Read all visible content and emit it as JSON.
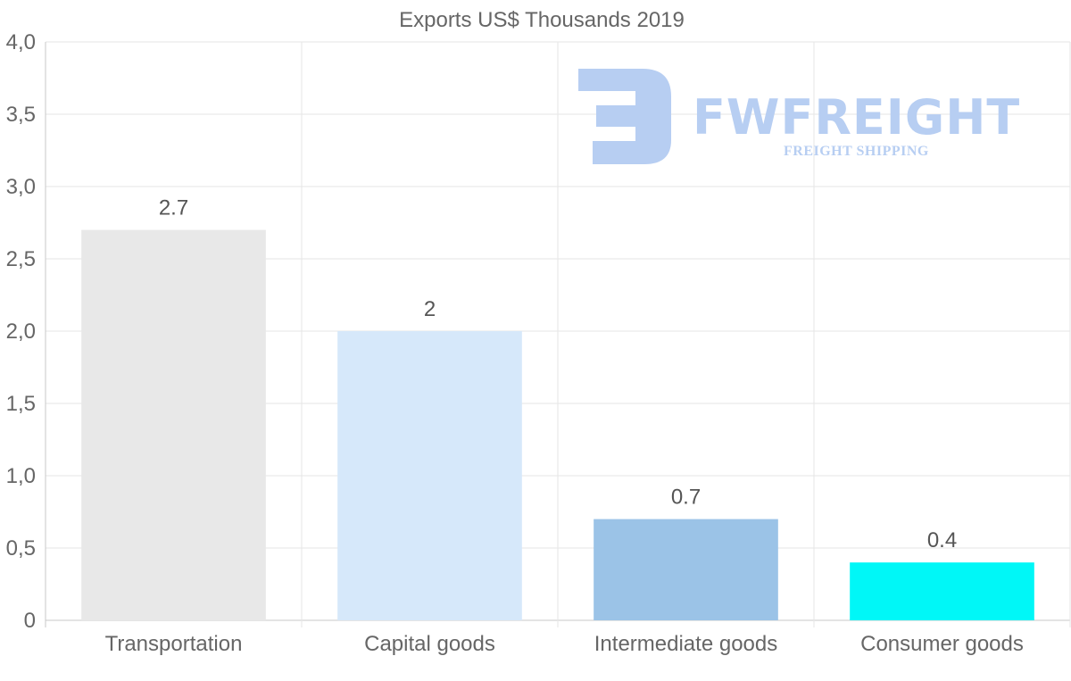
{
  "chart_data": {
    "type": "bar",
    "title": "Exports US$ Thousands 2019",
    "xlabel": "",
    "ylabel": "",
    "ylim": [
      0,
      4
    ],
    "yticks": [
      0,
      0.5,
      1,
      1.5,
      2,
      2.5,
      3,
      3.5,
      4
    ],
    "ytick_labels": [
      "0",
      "0,5",
      "1,0",
      "1,5",
      "2,0",
      "2,5",
      "3,0",
      "3,5",
      "4,0"
    ],
    "grid": true,
    "categories": [
      "Transportation",
      "Capital goods",
      "Intermediate goods",
      "Consumer goods"
    ],
    "values": [
      2.7,
      2,
      0.7,
      0.4
    ],
    "value_labels": [
      "2.7",
      "2",
      "0.7",
      "0.4"
    ],
    "bar_colors": [
      "#e8e8e8",
      "#d6e8fa",
      "#9bc3e7",
      "#00f7f7"
    ]
  },
  "watermark": {
    "brand": "FWFREIGHT",
    "tagline": "FREIGHT SHIPPING",
    "color": "#b7cef2"
  }
}
